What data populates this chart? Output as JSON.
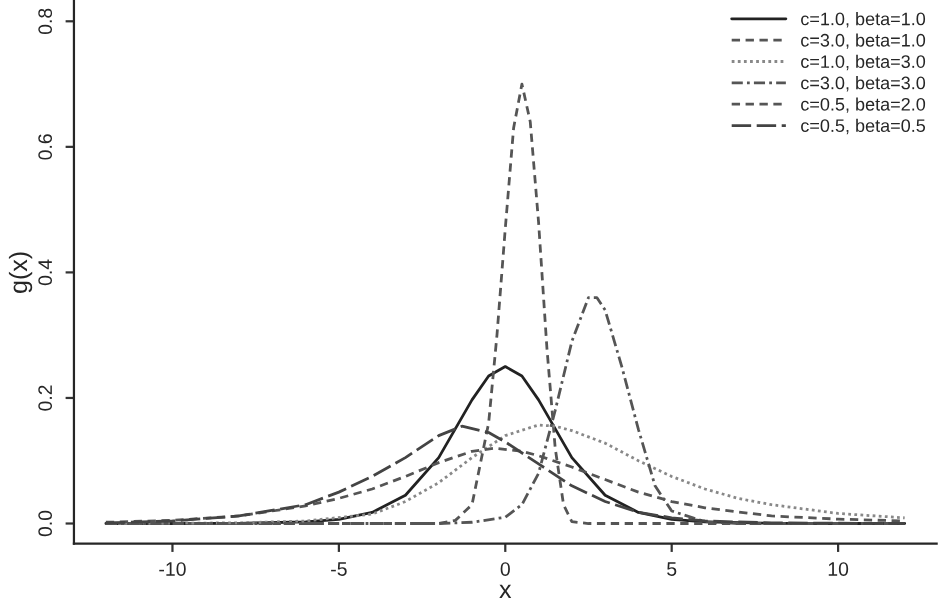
{
  "chart_data": {
    "type": "line",
    "xlabel": "x",
    "ylabel": "g(x)",
    "xlim": [
      -12.96,
      12.96
    ],
    "ylim": [
      -0.032,
      0.832
    ],
    "xticks": [
      -10,
      -5,
      0,
      5,
      10
    ],
    "yticks": [
      {
        "value": 0,
        "label": "0.0"
      },
      {
        "value": 0.2,
        "label": "0.2"
      },
      {
        "value": 0.4,
        "label": "0.4"
      },
      {
        "value": 0.6,
        "label": "0.6"
      },
      {
        "value": 0.8,
        "label": "0.8"
      }
    ],
    "grid": false,
    "legend": "top right",
    "marker": "none",
    "series": [
      {
        "name": "c=1.0, beta=1.0",
        "color": "#222222",
        "line_style": "solid",
        "x": [
          -12,
          -10,
          -8,
          -6,
          -5,
          -4,
          -3,
          -2,
          -1,
          -0.5,
          0,
          0.5,
          1,
          2,
          3,
          4,
          5,
          6,
          8,
          10,
          12
        ],
        "values": [
          0,
          0,
          0.0003,
          0.0025,
          0.0066,
          0.0177,
          0.045,
          0.105,
          0.197,
          0.235,
          0.25,
          0.235,
          0.197,
          0.105,
          0.045,
          0.0177,
          0.0066,
          0.0025,
          0.0003,
          0,
          0
        ]
      },
      {
        "name": "c=3.0, beta=1.0",
        "color": "#555555",
        "line_style": "dashed",
        "x": [
          -12,
          -2,
          -1.5,
          -1,
          -0.5,
          -0.25,
          0,
          0.25,
          0.5,
          0.75,
          1,
          1.25,
          1.5,
          1.75,
          2,
          2.5,
          12
        ],
        "values": [
          0,
          0,
          0.005,
          0.03,
          0.16,
          0.3,
          0.47,
          0.63,
          0.7,
          0.64,
          0.48,
          0.28,
          0.12,
          0.03,
          0.003,
          0,
          0
        ]
      },
      {
        "name": "c=1.0, beta=3.0",
        "color": "#888888",
        "line_style": "dotted",
        "x": [
          -12,
          -8,
          -6,
          -4,
          -3,
          -2,
          -1,
          0,
          1,
          1.5,
          2,
          3,
          4,
          5,
          6,
          7,
          8,
          10,
          12
        ],
        "values": [
          0,
          0.001,
          0.004,
          0.015,
          0.035,
          0.065,
          0.105,
          0.14,
          0.157,
          0.155,
          0.148,
          0.128,
          0.1,
          0.075,
          0.055,
          0.04,
          0.03,
          0.016,
          0.009
        ]
      },
      {
        "name": "c=3.0, beta=3.0",
        "color": "#555555",
        "line_style": "dashdot",
        "x": [
          -12,
          -2,
          -1,
          0,
          0.5,
          1,
          1.5,
          2,
          2.5,
          2.75,
          3,
          3.5,
          4,
          4.5,
          5,
          6,
          7,
          12
        ],
        "values": [
          0,
          0,
          0.002,
          0.01,
          0.03,
          0.08,
          0.18,
          0.29,
          0.36,
          0.36,
          0.34,
          0.25,
          0.15,
          0.06,
          0.02,
          0.003,
          0,
          0
        ]
      },
      {
        "name": "c=0.5, beta=2.0",
        "color": "#555555",
        "line_style": "dashed",
        "x": [
          -12,
          -10,
          -8,
          -6,
          -5,
          -4,
          -3,
          -2,
          -1,
          -0.3,
          0.5,
          1,
          2,
          3,
          4,
          5,
          6,
          8,
          10,
          12
        ],
        "values": [
          0.002,
          0.005,
          0.012,
          0.028,
          0.04,
          0.055,
          0.075,
          0.097,
          0.115,
          0.12,
          0.115,
          0.108,
          0.09,
          0.07,
          0.05,
          0.035,
          0.025,
          0.012,
          0.007,
          0.004
        ]
      },
      {
        "name": "c=0.5, beta=0.5",
        "color": "#444444",
        "line_style": "longdash",
        "x": [
          -12,
          -10,
          -8,
          -6,
          -5,
          -4,
          -3,
          -2,
          -1.3,
          -0.5,
          0,
          1,
          2,
          3,
          4,
          5,
          6,
          8,
          12
        ],
        "values": [
          0.001,
          0.004,
          0.012,
          0.03,
          0.05,
          0.075,
          0.105,
          0.14,
          0.155,
          0.145,
          0.13,
          0.095,
          0.06,
          0.035,
          0.018,
          0.009,
          0.004,
          0.001,
          0
        ]
      }
    ]
  }
}
